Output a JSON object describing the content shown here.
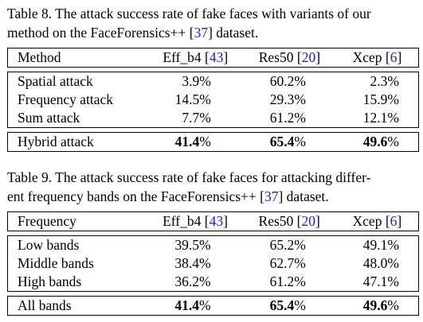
{
  "table8": {
    "caption_line1": "Table 8.  The attack success rate of fake faces with variants of our",
    "caption_line2_pre": "method on the FaceForensics++ [",
    "caption_cite": "37",
    "caption_line2_post": "] dataset.",
    "header": {
      "col0": "Method",
      "col1_name": "Eff_b4 [",
      "col1_ref": "43",
      "col1_close": "]",
      "col2_name": "Res50 [",
      "col2_ref": "20",
      "col2_close": "]",
      "col3_name": "Xcep [",
      "col3_ref": "6",
      "col3_close": "]"
    },
    "rows": [
      {
        "label": "Spatial attack",
        "v1": "3.9%",
        "v2": "60.2%",
        "v3": "2.3%"
      },
      {
        "label": "Frequency attack",
        "v1": "14.5%",
        "v2": "29.3%",
        "v3": "15.9%"
      },
      {
        "label": "Sum attack",
        "v1": "7.7%",
        "v2": "61.2%",
        "v3": "12.1%"
      }
    ],
    "final": {
      "label": "Hybrid attack",
      "v1": "41.4",
      "v2": "65.4",
      "v3": "49.6",
      "unit": "%"
    }
  },
  "table9": {
    "caption_line1": "Table 9.  The attack success rate of fake faces for attacking differ-",
    "caption_line2_pre": "ent frequency bands on the FaceForensics++ [",
    "caption_cite": "37",
    "caption_line2_post": "] dataset.",
    "header": {
      "col0": "Frequency",
      "col1_name": "Eff_b4 [",
      "col1_ref": "43",
      "col1_close": "]",
      "col2_name": "Res50 [",
      "col2_ref": "20",
      "col2_close": "]",
      "col3_name": "Xcep [",
      "col3_ref": "6",
      "col3_close": "]"
    },
    "rows": [
      {
        "label": "Low bands",
        "v1": "39.5%",
        "v2": "65.2%",
        "v3": "49.1%"
      },
      {
        "label": "Middle bands",
        "v1": "38.4%",
        "v2": "62.7%",
        "v3": "48.0%"
      },
      {
        "label": "High bands",
        "v1": "36.2%",
        "v2": "61.2%",
        "v3": "47.1%"
      }
    ],
    "final": {
      "label": "All bands",
      "v1": "41.4",
      "v2": "65.4",
      "v3": "49.6",
      "unit": "%"
    }
  },
  "colors": {
    "citation": "#1f1fd0"
  }
}
